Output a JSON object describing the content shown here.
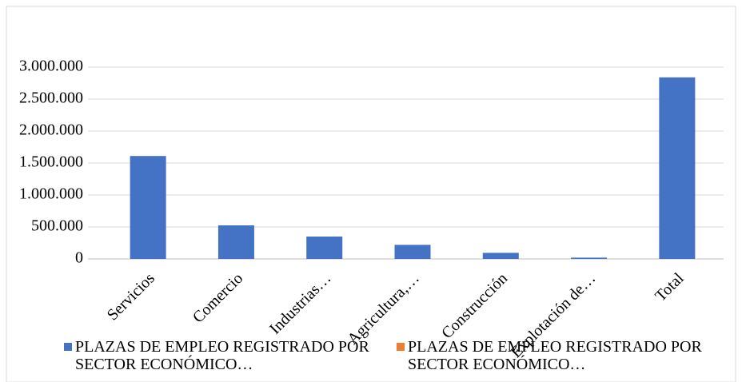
{
  "chart_data": {
    "type": "bar",
    "categories": [
      "Servicios",
      "Comercio",
      "Industrias…",
      "Agricultura,…",
      "Construcción",
      "Explotación de…",
      "Total"
    ],
    "series": [
      {
        "name": "PLAZAS DE EMPLEO REGISTRADO POR SECTOR ECONÓMICO…",
        "color": "#4472c4",
        "values": [
          1610000,
          525000,
          350000,
          220000,
          95000,
          20000,
          2840000
        ]
      },
      {
        "name": "PLAZAS DE EMPLEO REGISTRADO POR SECTOR ECONÓMICO…",
        "color": "#ed7d31",
        "values": [
          null,
          null,
          null,
          null,
          null,
          null,
          null
        ]
      }
    ],
    "ylim": [
      0,
      3000000
    ],
    "yticks": [
      0,
      {
        "value": 500000,
        "label": "500.000"
      },
      {
        "value": 1000000,
        "label": "1.000.000"
      },
      {
        "value": 1500000,
        "label": "1.500.000"
      },
      {
        "value": 2000000,
        "label": "2.000.000"
      },
      {
        "value": 2500000,
        "label": "2.500.000"
      },
      {
        "value": 3000000,
        "label": "3.000.000"
      }
    ],
    "grid": true,
    "legend": "bottom"
  }
}
